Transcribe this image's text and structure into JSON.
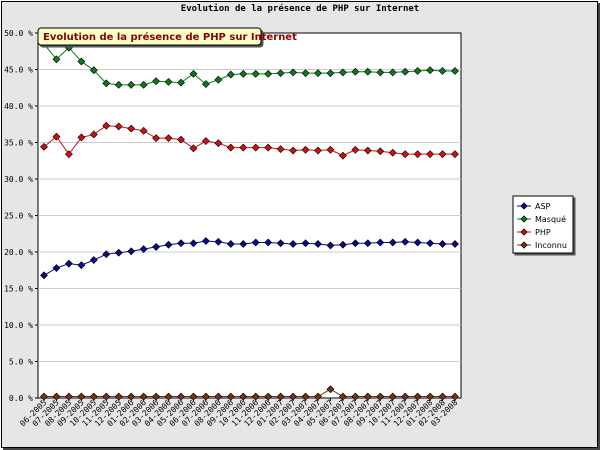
{
  "chart_data": {
    "type": "line",
    "title": "Evolution de la présence de PHP sur Internet",
    "subtitle": "Evolution de la présence de PHP sur Internet",
    "ylim": [
      0,
      50
    ],
    "y_ticks": [
      "0.0 %",
      "5.0 %",
      "10.0 %",
      "15.0 %",
      "20.0 %",
      "25.0 %",
      "30.0 %",
      "35.0 %",
      "40.0 %",
      "45.0 %",
      "50.0 %"
    ],
    "x": [
      "06-2005",
      "07-2005",
      "08-2005",
      "09-2005",
      "10-2005",
      "11-2005",
      "12-2005",
      "01-2006",
      "02-2006",
      "03-2006",
      "04-2006",
      "05-2006",
      "06-2006",
      "07-2006",
      "08-2006",
      "09-2006",
      "10-2006",
      "11-2006",
      "12-2006",
      "01-2007",
      "02-2007",
      "03-2007",
      "04-2007",
      "05-2007",
      "06-2007",
      "07-2007",
      "08-2007",
      "09-2007",
      "10-2007",
      "11-2007",
      "12-2007",
      "01-2008",
      "02-2008",
      "03-2008"
    ],
    "x_tick_labels": [
      "06-2005",
      "07-2005",
      "08-2005",
      "09-2005",
      "10-2005",
      "11-2005",
      "12-2005",
      "01-2006",
      "02-2006",
      "03-2006",
      "04-2006",
      "05-2006",
      "06-2006",
      "07-2006",
      "08-2006",
      "09-2006",
      "10-2006",
      "11-2006",
      "12-2006",
      "01-2007",
      "02-2007",
      "03-2007",
      "04-2007",
      "05-2007",
      "06-2007",
      "07-2007",
      "08-2007",
      "09-2007",
      "10-2007",
      "11-2007",
      "12-2007",
      "01-2008",
      "02-2008",
      "03-2008"
    ],
    "series": [
      {
        "name": "ASP",
        "color": "#0a0a8a",
        "values": [
          16.8,
          17.8,
          18.4,
          18.2,
          18.9,
          19.7,
          19.9,
          20.1,
          20.4,
          20.7,
          21.0,
          21.2,
          21.2,
          21.5,
          21.4,
          21.1,
          21.1,
          21.3,
          21.3,
          21.2,
          21.1,
          21.2,
          21.1,
          20.9,
          21.0,
          21.2,
          21.2,
          21.3,
          21.3,
          21.4,
          21.3,
          21.2,
          21.1,
          21.1
        ]
      },
      {
        "name": "Masqué",
        "color": "#0a7a1a",
        "values": [
          48.5,
          46.4,
          48.0,
          46.1,
          44.9,
          43.1,
          42.9,
          42.9,
          42.9,
          43.4,
          43.3,
          43.2,
          44.4,
          43.0,
          43.6,
          44.3,
          44.4,
          44.4,
          44.4,
          44.5,
          44.6,
          44.5,
          44.5,
          44.5,
          44.6,
          44.7,
          44.7,
          44.6,
          44.6,
          44.7,
          44.8,
          44.9,
          44.8,
          44.8
        ]
      },
      {
        "name": "PHP",
        "color": "#d01010",
        "values": [
          34.4,
          35.8,
          33.4,
          35.7,
          36.1,
          37.3,
          37.2,
          36.9,
          36.6,
          35.6,
          35.6,
          35.4,
          34.2,
          35.2,
          34.9,
          34.3,
          34.3,
          34.3,
          34.3,
          34.1,
          33.9,
          34.0,
          33.9,
          34.0,
          33.2,
          34.0,
          33.9,
          33.8,
          33.6,
          33.4,
          33.4,
          33.4,
          33.4,
          33.4
        ]
      },
      {
        "name": "Inconnu",
        "color": "#7a3010",
        "values": [
          0.2,
          0.2,
          0.2,
          0.2,
          0.2,
          0.2,
          0.2,
          0.2,
          0.2,
          0.2,
          0.2,
          0.2,
          0.2,
          0.2,
          0.2,
          0.2,
          0.2,
          0.2,
          0.2,
          0.2,
          0.2,
          0.2,
          0.2,
          1.2,
          0.2,
          0.2,
          0.2,
          0.2,
          0.2,
          0.2,
          0.2,
          0.2,
          0.2,
          0.2
        ]
      }
    ],
    "legend": "right",
    "grid": true
  }
}
